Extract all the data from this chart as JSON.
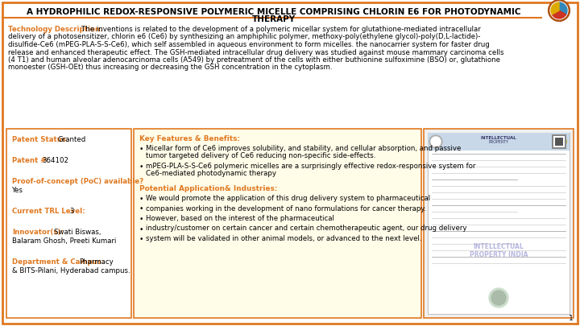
{
  "bg_color": "#ffffff",
  "border_color": "#e07820",
  "title_line1": "A HYDROPHILIC REDOX-RESPONSIVE POLYMERIC MICELLE COMPRISING CHLORIN E6 FOR PHOTODYNAMIC",
  "title_line2": "THERAPY",
  "tech_label": "Technology Description:",
  "tech_body": "The inventions is related to the development of a polymeric micellar system for glutathione-mediated intracellular delivery of a photosensitizer, chlorin e6 (Ce6) by synthesizing an amphiphilic polymer, methoxy-poly(ethylene glycol)-poly(D,L-lactide)-disulfide-Ce6 (mPEG-PLA-S-S-Ce6), which self assembled in aqueous environment to form micelles. the nanocarrier system for faster drug release and enhanced therapeutic effect. The GSH-mediated intracellular drug delivery was studied against mouse mammary carcinoma cells (4 T1) and human alveolar adenocarcinoma cells (A549) by pretreatment of the cells with either buthionine sulfoximine (BSO) or, glutathione monoester (GSH-OEt) thus increasing or decreasing the GSH concentration in the cytoplasm.",
  "patent_status_label": "Patent Status:",
  "patent_status_value": "Granted",
  "patent_num_label": "Patent #:",
  "patent_num_value": "364102",
  "poc_label": "Proof-of-concept (PoC) available?",
  "poc_value": "Yes",
  "trl_label": "Current TRL Level:",
  "trl_value": "3",
  "innovator_label": "Innovator(s):",
  "innovator_value": "Swati Biswas,\nBalaram Ghosh, Preeti Kumari",
  "dept_label": "Department & Campus:",
  "dept_value": "Pharmacy\n& BITS-Pilani, Hyderabad campus.",
  "features_title": "Key Features & Benefits:",
  "features_bullets": [
    "Micellar form of Ce6 improves solubility, and stability, and cellular absorption, and passive tumor targeted delivery of Ce6 reducing non-specific side-effects.",
    "mPEG-PLA-S-S-Ce6 polymeric micelles are a surprisingly effective redox-responsive system for Ce6-mediated photodynamic therapy"
  ],
  "potential_title": "Potential Application& Industries:",
  "potential_bullets": [
    "We would promote the application of this drug delivery system to pharmaceutical",
    "companies working in the development of nano formulations for cancer therapy.",
    "However, based on the interest of the pharmaceutical",
    "industry/customer on certain cancer and certain chemotherapeutic agent, our drug delivery",
    "system will be validated in other animal models, or advanced to the next level."
  ],
  "orange": "#e07820",
  "black": "#000000",
  "light_yellow": "#fffce8"
}
